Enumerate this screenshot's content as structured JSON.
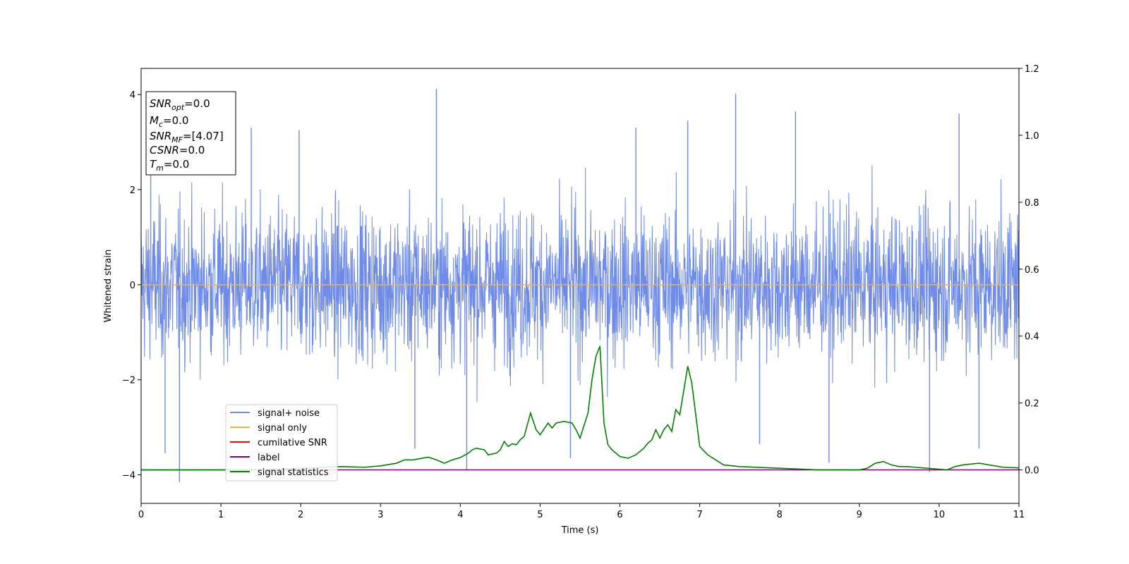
{
  "chart_data": {
    "type": "line",
    "xlabel": "Time (s)",
    "ylabel": "Whitened strain",
    "xlim": [
      0,
      11
    ],
    "ylim": [
      -4.6,
      4.55
    ],
    "y2lim": [
      -0.1,
      1.2
    ],
    "xticks": [
      "0",
      "1",
      "2",
      "3",
      "4",
      "5",
      "6",
      "7",
      "8",
      "9",
      "10",
      "11"
    ],
    "yticks": [
      "4",
      "2",
      "0",
      "−2",
      "−4"
    ],
    "y2ticks": [
      "1.2",
      "1.0",
      "0.8",
      "0.6",
      "0.4",
      "0.2",
      "0.0"
    ],
    "grid": false,
    "legend_location": "lower-left",
    "colors": {
      "noise": "#6f8be8",
      "signal_only": "#f5b041",
      "cumulative": "#ff0000",
      "label": "#800080",
      "statistics": "#008000"
    },
    "noise_summary": {
      "description": "dense whitened noise, sampled trace",
      "typical_band": [
        -2.2,
        2.2
      ],
      "peak_max": 4.12,
      "peak_min": -4.15
    },
    "noise_spikes": [
      {
        "t": 0.48,
        "v": -4.15
      },
      {
        "t": 0.3,
        "v": -3.55
      },
      {
        "t": 1.38,
        "v": 3.3
      },
      {
        "t": 3.43,
        "v": -3.45
      },
      {
        "t": 3.7,
        "v": 4.12
      },
      {
        "t": 4.08,
        "v": -3.9
      },
      {
        "t": 5.38,
        "v": -3.65
      },
      {
        "t": 6.2,
        "v": 3.3
      },
      {
        "t": 7.45,
        "v": 4.02
      },
      {
        "t": 7.75,
        "v": -3.35
      },
      {
        "t": 8.2,
        "v": 3.65
      },
      {
        "t": 8.62,
        "v": -3.75
      },
      {
        "t": 9.88,
        "v": -3.95
      },
      {
        "t": 10.25,
        "v": 3.6
      },
      {
        "t": 1.98,
        "v": 3.25
      },
      {
        "t": 6.85,
        "v": 3.45
      },
      {
        "t": 10.5,
        "v": -3.45
      },
      {
        "t": 0.12,
        "v": 3.0
      }
    ],
    "signal_only": {
      "x": [
        0,
        11
      ],
      "y": [
        0,
        0
      ]
    },
    "label_line": {
      "x": [
        0,
        11
      ],
      "y2": [
        0.0,
        0.0
      ]
    },
    "series": [
      {
        "name": "signal statistics",
        "axis": "right",
        "x": [
          0,
          0.5,
          1,
          1.5,
          2,
          2.5,
          2.8,
          3.0,
          3.2,
          3.3,
          3.4,
          3.6,
          3.7,
          3.8,
          3.9,
          4.0,
          4.1,
          4.15,
          4.2,
          4.3,
          4.35,
          4.45,
          4.5,
          4.55,
          4.6,
          4.65,
          4.7,
          4.75,
          4.8,
          4.88,
          4.95,
          5.0,
          5.1,
          5.15,
          5.2,
          5.3,
          5.4,
          5.45,
          5.5,
          5.6,
          5.65,
          5.7,
          5.75,
          5.8,
          5.85,
          5.9,
          6.0,
          6.1,
          6.15,
          6.2,
          6.3,
          6.35,
          6.4,
          6.45,
          6.5,
          6.55,
          6.6,
          6.65,
          6.7,
          6.75,
          6.85,
          6.9,
          7.0,
          7.1,
          7.2,
          7.3,
          7.5,
          8.0,
          8.5,
          9.0,
          9.1,
          9.2,
          9.3,
          9.4,
          9.5,
          9.6,
          9.7,
          9.85,
          10.0,
          10.1,
          10.2,
          10.3,
          10.5,
          10.7,
          10.8,
          11.0
        ],
        "y": [
          0.0,
          0.0,
          0.0,
          0.0,
          0.005,
          0.01,
          0.008,
          0.012,
          0.02,
          0.03,
          0.03,
          0.038,
          0.03,
          0.02,
          0.03,
          0.037,
          0.05,
          0.06,
          0.065,
          0.06,
          0.045,
          0.05,
          0.06,
          0.085,
          0.07,
          0.078,
          0.075,
          0.09,
          0.1,
          0.17,
          0.12,
          0.105,
          0.14,
          0.125,
          0.14,
          0.145,
          0.14,
          0.12,
          0.095,
          0.17,
          0.27,
          0.34,
          0.37,
          0.14,
          0.075,
          0.06,
          0.04,
          0.035,
          0.04,
          0.045,
          0.065,
          0.08,
          0.09,
          0.12,
          0.095,
          0.12,
          0.135,
          0.115,
          0.18,
          0.165,
          0.31,
          0.26,
          0.07,
          0.045,
          0.03,
          0.015,
          0.01,
          0.005,
          0.0,
          0.0,
          0.005,
          0.02,
          0.025,
          0.015,
          0.01,
          0.01,
          0.008,
          0.005,
          0.002,
          0.0,
          0.01,
          0.015,
          0.02,
          0.012,
          0.008,
          0.006
        ]
      }
    ],
    "legend": [
      "signal+ noise",
      "signal only",
      "cumilative SNR",
      "label",
      "signal statistics"
    ]
  },
  "info_box": {
    "snr_opt_var": "SNR",
    "snr_opt_sub": "opt",
    "snr_opt_val": "=0.0",
    "mc_var": "M",
    "mc_sub": "c",
    "mc_val": "=0.0",
    "snr_mf_var": "SNR",
    "snr_mf_sub": "MF",
    "snr_mf_val": "=[4.07]",
    "csnr_var": "CSNR",
    "csnr_val": "=0.0",
    "tm_var": "T",
    "tm_sub": "m",
    "tm_val": "=0.0"
  }
}
